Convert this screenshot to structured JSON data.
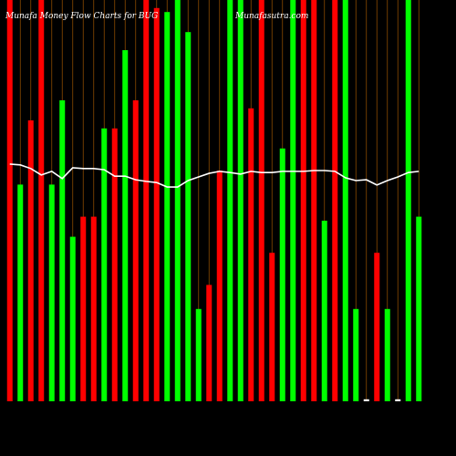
{
  "chart_data": {
    "type": "bar",
    "title": "Munafa  Money Flow Charts for BUG",
    "subtitle": "Munafasutra.com",
    "categories": [
      null,
      null,
      null,
      null,
      null,
      null,
      null,
      null,
      null,
      null,
      null,
      null,
      null,
      null,
      null,
      null,
      null,
      null,
      null,
      null,
      null,
      null,
      null,
      null,
      null,
      null,
      null,
      null,
      null,
      null,
      null,
      null,
      null,
      null,
      null,
      null,
      null,
      null,
      null,
      null
    ],
    "ylim": [
      0,
      100
    ],
    "series": [
      {
        "type": "bar",
        "values": [
          100,
          54,
          70,
          100,
          54,
          75,
          41,
          46,
          46,
          68,
          68,
          87.5,
          75,
          100,
          98,
          97,
          100,
          92,
          23,
          29,
          57.5,
          100,
          100,
          73,
          100,
          37,
          63,
          100,
          100,
          100,
          45,
          100,
          100,
          23,
          0.5,
          37,
          23,
          0.5,
          100,
          46
        ],
        "colors": [
          "#ff0000",
          "#00ff00",
          "#ff0000",
          "#ff0000",
          "#00ff00",
          "#00ff00",
          "#00ff00",
          "#ff0000",
          "#ff0000",
          "#00ff00",
          "#ff0000",
          "#00ff00",
          "#ff0000",
          "#ff0000",
          "#ff0000",
          "#00ff00",
          "#00ff00",
          "#00ff00",
          "#00ff00",
          "#ff0000",
          "#ff0000",
          "#00ff00",
          "#00ff00",
          "#ff0000",
          "#ff0000",
          "#ff0000",
          "#00ff00",
          "#00ff00",
          "#ff0000",
          "#ff0000",
          "#00ff00",
          "#ff0000",
          "#00ff00",
          "#00ff00",
          "#ffffff",
          "#ff0000",
          "#00ff00",
          "#ffffff",
          "#00ff00",
          "#00ff00"
        ]
      },
      {
        "type": "line",
        "color": "#ffffff",
        "values": [
          59.1,
          58.9,
          58.0,
          56.4,
          57.3,
          55.5,
          58.2,
          58.0,
          58.0,
          57.7,
          56.1,
          56.1,
          55.2,
          54.8,
          54.5,
          53.4,
          53.4,
          55.0,
          55.9,
          56.8,
          57.3,
          57.0,
          56.6,
          57.3,
          57.0,
          57.0,
          57.3,
          57.3,
          57.3,
          57.5,
          57.5,
          57.3,
          55.7,
          55.0,
          55.2,
          53.9,
          55.0,
          55.9,
          57.0,
          57.3
        ]
      }
    ],
    "grid_color": "#8b4a00"
  }
}
